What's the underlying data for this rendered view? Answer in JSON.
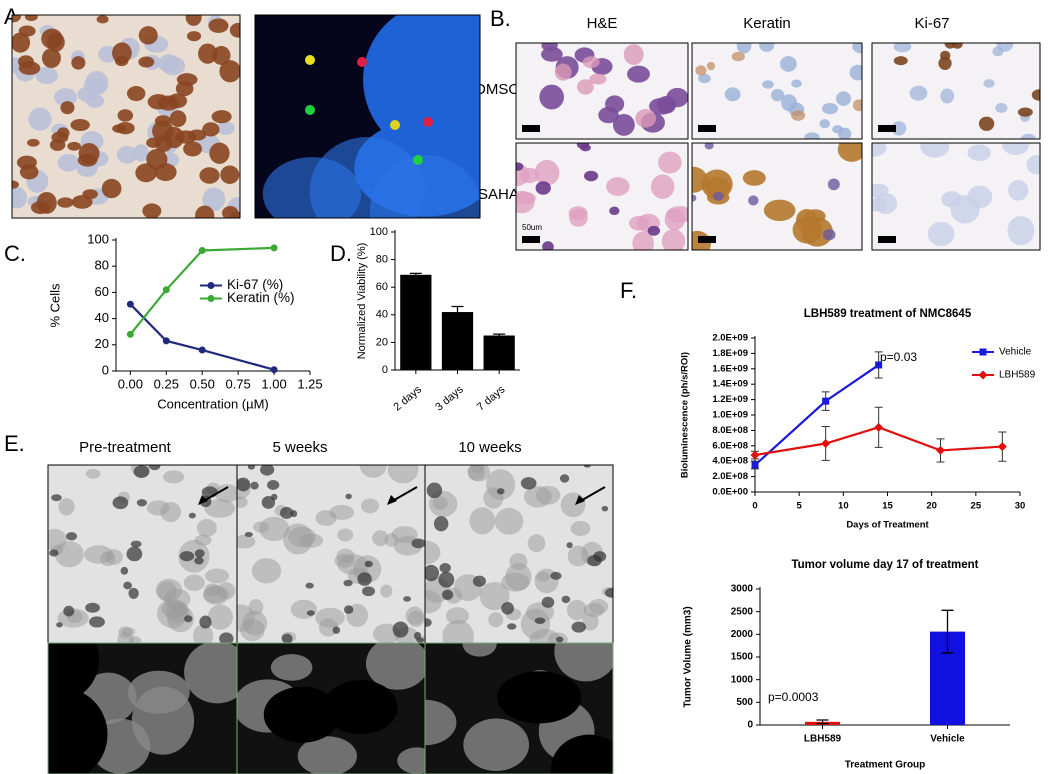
{
  "panels": {
    "a": "A.",
    "b": "B.",
    "c": "C.",
    "d": "D.",
    "e": "E.",
    "f": "F."
  },
  "panel_b": {
    "columns": [
      "H&E",
      "Keratin",
      "Ki-67"
    ],
    "rows": [
      "DMSO",
      "SAHA"
    ],
    "scale_bar": "50um"
  },
  "panel_e": {
    "columns": [
      "Pre-treatment",
      "5 weeks",
      "10 weeks"
    ]
  },
  "chart_data": [
    {
      "type": "line",
      "xlabel": "Concentration (µM)",
      "ylabel": "% Cells",
      "x": [
        0,
        0.25,
        0.5,
        1.0
      ],
      "series": [
        {
          "name": "Ki-67 (%)",
          "color": "#1f2a7a",
          "marker": "circle",
          "values": [
            51,
            23,
            16,
            1
          ]
        },
        {
          "name": "Keratin (%)",
          "color": "#3aa935",
          "marker": "circle",
          "values": [
            28,
            62,
            92,
            94
          ]
        }
      ],
      "xlim": [
        -0.1,
        1.25
      ],
      "xticks": [
        {
          "value": 0,
          "label": "0.00"
        },
        {
          "value": 0.25,
          "label": "0.25"
        },
        {
          "value": 0.5,
          "label": "0.50"
        },
        {
          "value": 0.75,
          "label": "0.75"
        },
        {
          "value": 1.0,
          "label": "1.00"
        },
        {
          "value": 1.25,
          "label": "1.25"
        }
      ],
      "ylim": [
        0,
        100
      ],
      "yticks": [
        0,
        20,
        40,
        60,
        80,
        100
      ],
      "legend": "center-right"
    },
    {
      "type": "bar",
      "ylabel": "Normalized Viability (%)",
      "categories": [
        "2 days",
        "3 days",
        "7 days"
      ],
      "values": [
        69,
        42,
        25
      ],
      "errors": [
        1,
        4,
        1
      ],
      "color": "#000000",
      "ylim": [
        0,
        100
      ],
      "yticks": [
        0,
        20,
        40,
        60,
        80,
        100
      ]
    },
    {
      "type": "line",
      "title": "LBH589 treatment of  NMC8645",
      "xlabel": "Days of Treatment",
      "ylabel": "Bioluminescence (ph/s/ROI)",
      "series": [
        {
          "name": "Vehicle",
          "color": "#1a1adb",
          "marker": "square",
          "x": [
            0,
            8,
            14
          ],
          "values": [
            350000000,
            1180000000,
            1650000000
          ],
          "errors": [
            50000000,
            120000000,
            170000000
          ]
        },
        {
          "name": "LBH589",
          "color": "#e01010",
          "marker": "diamond",
          "x": [
            0,
            8,
            14,
            21,
            28
          ],
          "values": [
            480000000,
            630000000,
            840000000,
            540000000,
            590000000
          ],
          "errors": [
            50000000,
            220000000,
            260000000,
            150000000,
            190000000
          ]
        }
      ],
      "annotation": "p=0.03",
      "xlim": [
        0,
        30
      ],
      "xticks": [
        0,
        5,
        10,
        15,
        20,
        25,
        30
      ],
      "ylim": [
        0,
        2000000000
      ],
      "yticks": [
        {
          "value": 0,
          "label": "0.0E+00"
        },
        {
          "value": 200000000,
          "label": "2.0E+08"
        },
        {
          "value": 400000000,
          "label": "4.0E+08"
        },
        {
          "value": 600000000,
          "label": "6.0E+08"
        },
        {
          "value": 800000000,
          "label": "8.0E+08"
        },
        {
          "value": 1000000000,
          "label": "1.0E+09"
        },
        {
          "value": 1200000000,
          "label": "1.2E+09"
        },
        {
          "value": 1400000000,
          "label": "1.4E+09"
        },
        {
          "value": 1600000000,
          "label": "1.6E+09"
        },
        {
          "value": 1800000000,
          "label": "1.8E+09"
        },
        {
          "value": 2000000000,
          "label": "2.0E+09"
        }
      ],
      "legend": "upper right"
    },
    {
      "type": "bar",
      "title": "Tumor volume day 17 of treatment",
      "xlabel": "Treatment Group",
      "ylabel": "Tumor Volume (mm3)",
      "categories": [
        "LBH589",
        "Vehicle"
      ],
      "values": [
        70,
        2060
      ],
      "errors": [
        40,
        470
      ],
      "colors": [
        "#e01010",
        "#1010e0"
      ],
      "annotation": "p=0.0003",
      "ylim": [
        0,
        3000
      ],
      "yticks": [
        0,
        500,
        1000,
        1500,
        2000,
        2500,
        3000
      ]
    }
  ]
}
